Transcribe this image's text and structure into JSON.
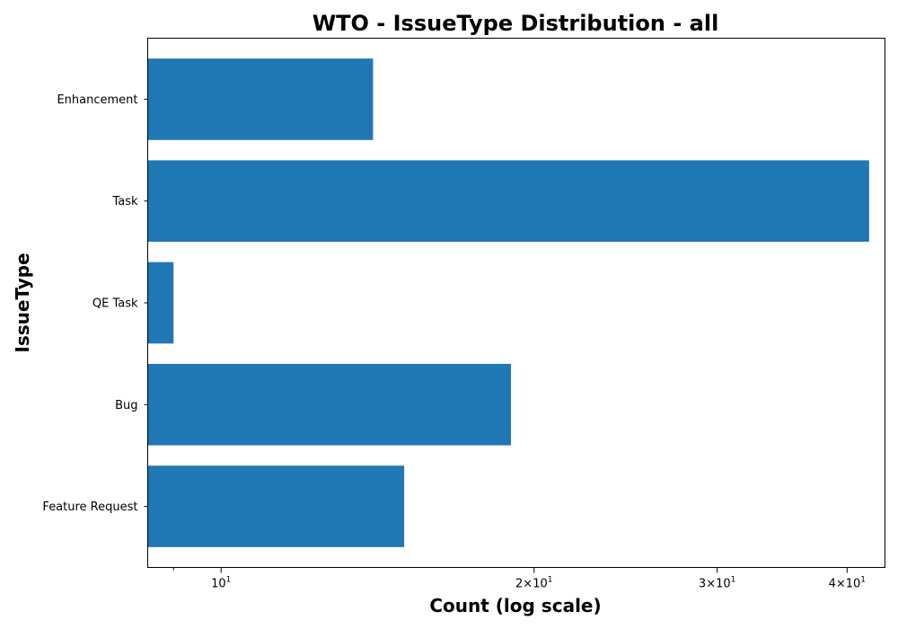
{
  "chart_data": {
    "type": "bar",
    "orientation": "horizontal",
    "title": "WTO - IssueType Distribution - all",
    "xlabel": "Count (log scale)",
    "ylabel": "IssueType",
    "x_scale": "log",
    "xlim": [
      8.5,
      43.5
    ],
    "x_major_ticks": [
      {
        "value": 10,
        "base": "10",
        "exp": "1",
        "prefix": ""
      },
      {
        "value": 20,
        "base": "10",
        "exp": "1",
        "prefix": "2×"
      },
      {
        "value": 30,
        "base": "10",
        "exp": "1",
        "prefix": "3×"
      },
      {
        "value": 40,
        "base": "10",
        "exp": "1",
        "prefix": "4×"
      }
    ],
    "x_minor_ticks": [
      9
    ],
    "categories": [
      "Enhancement",
      "Task",
      "QE Task",
      "Bug",
      "Feature Request"
    ],
    "values": [
      14,
      42,
      9,
      19,
      15
    ],
    "bar_color": "#1f77b4",
    "grid": false,
    "legend": "none"
  }
}
